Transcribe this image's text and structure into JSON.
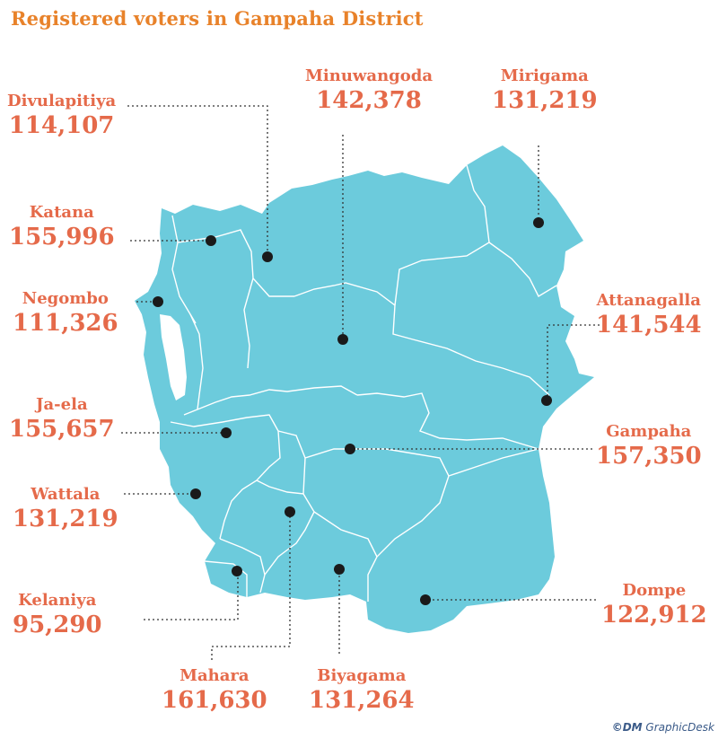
{
  "title": "Registered voters in Gampaha District",
  "credit": {
    "mark": "©DM",
    "text": "GraphicDesk"
  },
  "colors": {
    "land": "#6ccbdc",
    "label": "#e56a4a",
    "title": "#e8822a",
    "leader": "#333333"
  },
  "regions": [
    {
      "name": "Divulapitiya",
      "voters": "114,107"
    },
    {
      "name": "Minuwangoda",
      "voters": "142,378"
    },
    {
      "name": "Mirigama",
      "voters": "131,219"
    },
    {
      "name": "Katana",
      "voters": "155,996"
    },
    {
      "name": "Negombo",
      "voters": "111,326"
    },
    {
      "name": "Attanagalla",
      "voters": "141,544"
    },
    {
      "name": "Ja-ela",
      "voters": "155,657"
    },
    {
      "name": "Gampaha",
      "voters": "157,350"
    },
    {
      "name": "Wattala",
      "voters": "131,219"
    },
    {
      "name": "Dompe",
      "voters": "122,912"
    },
    {
      "name": "Kelaniya",
      "voters": "95,290"
    },
    {
      "name": "Mahara",
      "voters": "161,630"
    },
    {
      "name": "Biyagama",
      "voters": "131,264"
    }
  ]
}
